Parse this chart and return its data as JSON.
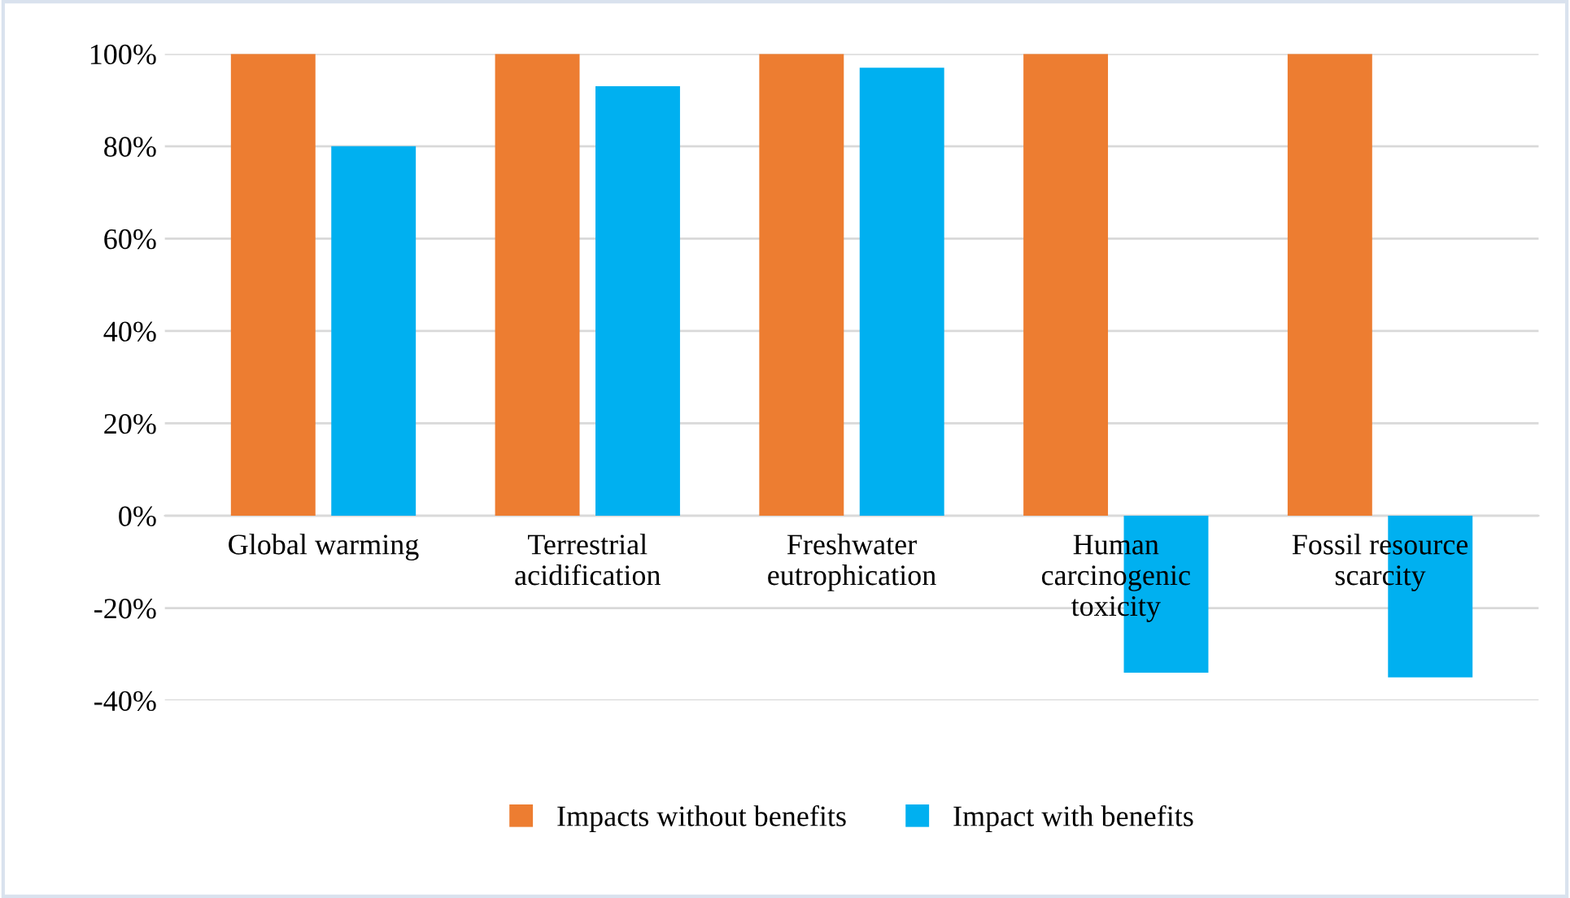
{
  "chart_data": {
    "type": "bar",
    "categories": [
      "Global warming",
      "Terrestrial\nacidification",
      "Freshwater\neutrophication",
      "Human\ncarcinogenic\ntoxicity",
      "Fossil resource\nscarcity"
    ],
    "series": [
      {
        "name": "Impacts without benefits",
        "color": "#ed7d31",
        "values": [
          100,
          100,
          100,
          100,
          100
        ]
      },
      {
        "name": "Impact with benefits",
        "color": "#00b0f0",
        "values": [
          80,
          93,
          97,
          -34,
          -35
        ]
      }
    ],
    "ylim": [
      -40,
      100
    ],
    "yticks": [
      {
        "value": -40,
        "label": "-40%"
      },
      {
        "value": -20,
        "label": "-20%"
      },
      {
        "value": 0,
        "label": "0%"
      },
      {
        "value": 20,
        "label": "20%"
      },
      {
        "value": 40,
        "label": "40%"
      },
      {
        "value": 60,
        "label": "60%"
      },
      {
        "value": 80,
        "label": "80%"
      },
      {
        "value": 100,
        "label": "100%"
      }
    ],
    "grid": "y",
    "legend": "bottom"
  }
}
